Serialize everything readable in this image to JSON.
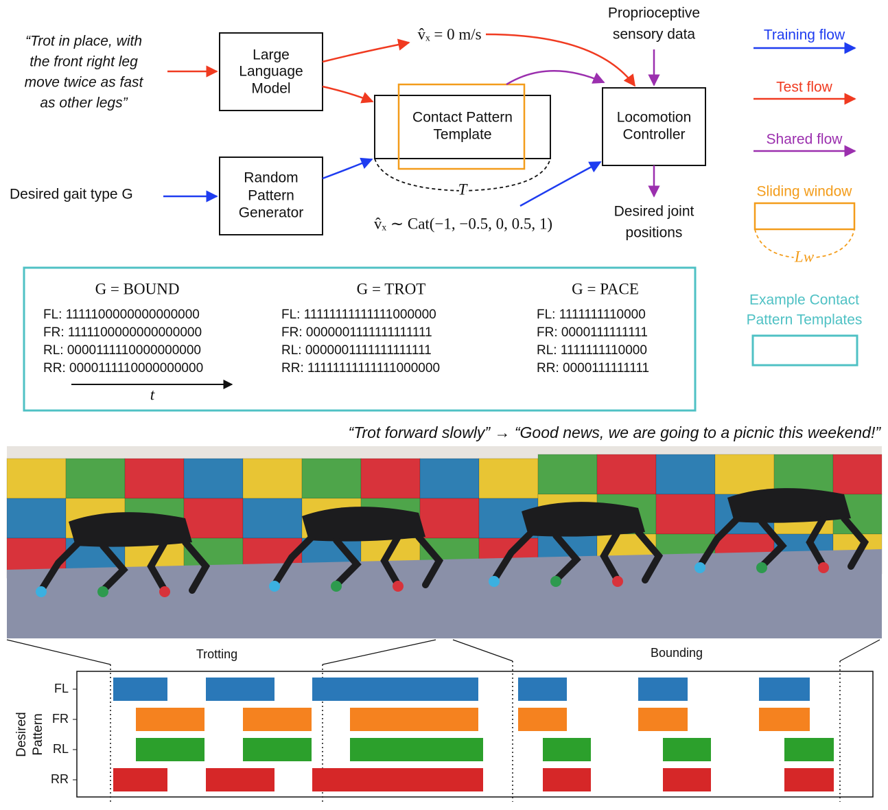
{
  "diagram": {
    "command": [
      "“Trot in place, with",
      "the front right leg",
      "move twice as fast",
      "as other legs”"
    ],
    "llm": [
      "Large",
      "Language",
      "Model"
    ],
    "vx_test": "v̂ₓ = 0 m/s",
    "proprio": [
      "Proprioceptive",
      "sensory data"
    ],
    "contact_template": [
      "Contact Pattern",
      "Template"
    ],
    "locomotion": [
      "Locomotion",
      "Controller"
    ],
    "gait_input": "Desired gait type G",
    "random": [
      "Random",
      "Pattern",
      "Generator"
    ],
    "T": "T",
    "vx_train": "v̂ₓ ∼ Cat(−1, −0.5, 0, 0.5, 1)",
    "joint": [
      "Desired joint",
      "positions"
    ]
  },
  "legend": {
    "training": "Training flow",
    "test": "Test flow",
    "shared": "Shared flow",
    "window": "Sliding window",
    "Lw": "Lw",
    "example": [
      "Example Contact",
      "Pattern Templates"
    ]
  },
  "templates": [
    {
      "title": "G = BOUND",
      "rows": [
        "FL: 1111100000000000000",
        "FR: 1111100000000000000",
        "RL: 0000111110000000000",
        "RR: 0000111110000000000"
      ]
    },
    {
      "title": "G = TROT",
      "rows": [
        "FL: 11111111111111000000",
        "FR: 0000001111111111111",
        "RL: 0000001111111111111",
        "RR: 11111111111111000000"
      ]
    },
    {
      "title": "G = PACE",
      "rows": [
        "FL: 1111111110000",
        "FR: 0000111111111",
        "RL: 1111111110000",
        "RR: 0000111111111"
      ]
    }
  ],
  "t": "t",
  "caption": "“Trot forward slowly” → “Good news, we are going to a picnic this weekend!”",
  "pattern": {
    "ylabel": [
      "Desired",
      "Pattern"
    ],
    "legs": [
      "FL",
      "FR",
      "RL",
      "RR"
    ],
    "phases": [
      "Trotting",
      "Bounding"
    ]
  }
}
